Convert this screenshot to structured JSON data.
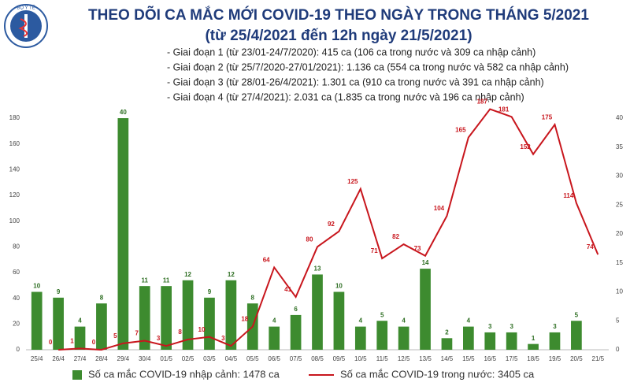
{
  "logo_text": "BỘ Y TẾ",
  "chart_data": {
    "type": "bar_line",
    "title": "THEO DÕI CA MẮC MỚI COVID-19 THEO NGÀY TRONG THÁNG 5/2021",
    "subtitle": "(từ 25/4/2021 đến 12h ngày 21/5/2021)",
    "notes": [
      "- Giai đoạn 1 (từ 23/01-24/7/2020): 415 ca (106 ca trong nước và 309 ca nhập cảnh)",
      "- Giai đoạn 2 (từ 25/7/2020-27/01/2021): 1.136 ca (554 ca trong nước và 582 ca nhập cảnh)",
      "- Giai đoạn 3 (từ 28/01-26/4/2021): 1.301 ca (910 ca trong nước và 391 ca nhập cảnh)",
      "- Giai đoạn 4 (từ 27/4/2021): 2.031 ca (1.835 ca trong nước và 196 ca nhập cảnh)"
    ],
    "categories": [
      "25/4",
      "26/4",
      "27/4",
      "28/4",
      "29/4",
      "30/4",
      "01/5",
      "02/5",
      "03/5",
      "04/5",
      "05/5",
      "06/5",
      "07/5",
      "08/5",
      "09/5",
      "10/5",
      "11/5",
      "12/5",
      "13/5",
      "14/5",
      "15/5",
      "16/5",
      "17/5",
      "18/5",
      "19/5",
      "20/5",
      "21/5"
    ],
    "series": [
      {
        "name": "Số ca mắc COVID-19 nhập cảnh: 1478 ca",
        "kind": "bar",
        "axis": "y2",
        "color": "#3d8b2f",
        "values": [
          10,
          9,
          4,
          8,
          40,
          11,
          11,
          12,
          9,
          12,
          8,
          4,
          6,
          13,
          10,
          4,
          5,
          4,
          14,
          2,
          4,
          3,
          3,
          1,
          3,
          5,
          null
        ]
      },
      {
        "name": "Số ca mắc COVID-19 trong nước: 3405 ca",
        "kind": "line",
        "axis": "y",
        "color": "#c8161d",
        "values": [
          null,
          0,
          1,
          0,
          5,
          7,
          3,
          8,
          10,
          3,
          18,
          64,
          41,
          80,
          92,
          125,
          71,
          82,
          73,
          104,
          165,
          187,
          181,
          152,
          175,
          114,
          74
        ]
      }
    ],
    "ylim": [
      0,
      180
    ],
    "yticks": [
      0,
      20,
      40,
      60,
      80,
      100,
      120,
      140,
      160,
      180
    ],
    "y2lim": [
      0,
      40
    ],
    "y2ticks": [
      0,
      5,
      10,
      15,
      20,
      25,
      30,
      35,
      40
    ],
    "grid": false
  }
}
